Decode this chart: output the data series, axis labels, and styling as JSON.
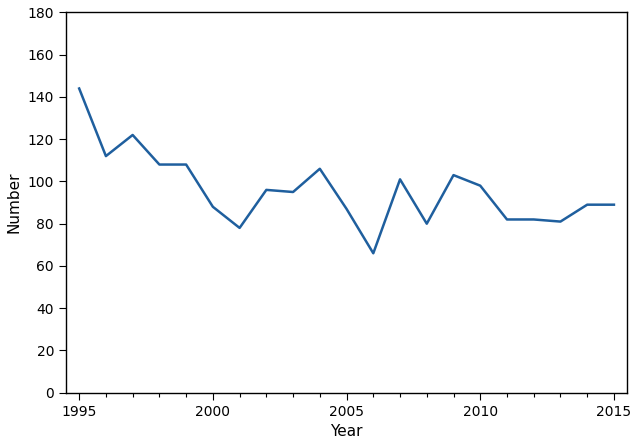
{
  "years": [
    1995,
    1996,
    1997,
    1998,
    1999,
    2000,
    2001,
    2002,
    2003,
    2004,
    2005,
    2006,
    2007,
    2008,
    2009,
    2010,
    2011,
    2012,
    2013,
    2014,
    2015
  ],
  "values": [
    144,
    112,
    122,
    108,
    108,
    88,
    78,
    96,
    95,
    106,
    87,
    66,
    101,
    80,
    103,
    98,
    82,
    82,
    81,
    89,
    89
  ],
  "line_color": "#1F5F9E",
  "line_width": 1.8,
  "xlabel": "Year",
  "ylabel": "Number",
  "xlim": [
    1994.5,
    2015.5
  ],
  "ylim": [
    0,
    180
  ],
  "yticks": [
    0,
    20,
    40,
    60,
    80,
    100,
    120,
    140,
    160,
    180
  ],
  "xticks_major": [
    1995,
    2000,
    2005,
    2010,
    2015
  ],
  "background_color": "#ffffff",
  "spine_color": "#000000",
  "tick_fontsize": 10,
  "label_fontsize": 11
}
